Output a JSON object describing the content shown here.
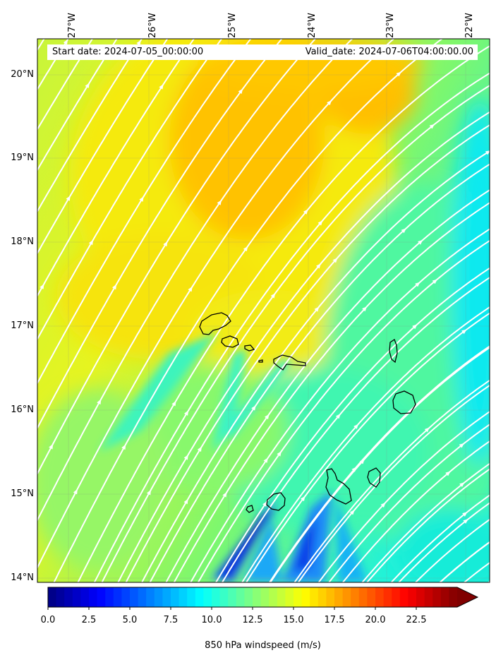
{
  "map": {
    "title_left": "Start date: 2024-07-05_00:00:00",
    "title_right": "Valid_date: 2024-07-06T04:00:00.00",
    "lon_labels": [
      "27°W",
      "26°W",
      "25°W",
      "24°W",
      "23°W",
      "22°W"
    ],
    "lat_labels": [
      "20°N",
      "19°N",
      "18°N",
      "17°N",
      "16°N",
      "15°N",
      "14°N"
    ],
    "colorbar": {
      "label": "850 hPa windspeed (m/s)",
      "ticks": [
        "0.0",
        "2.5",
        "5.0",
        "7.5",
        "10.0",
        "12.5",
        "15.0",
        "17.5",
        "20.0",
        "22.5"
      ],
      "range": [
        0,
        25
      ],
      "colormap": "jet",
      "extend": "max"
    },
    "streamline_color": "#ffffff",
    "coastline_color": "#000000"
  }
}
